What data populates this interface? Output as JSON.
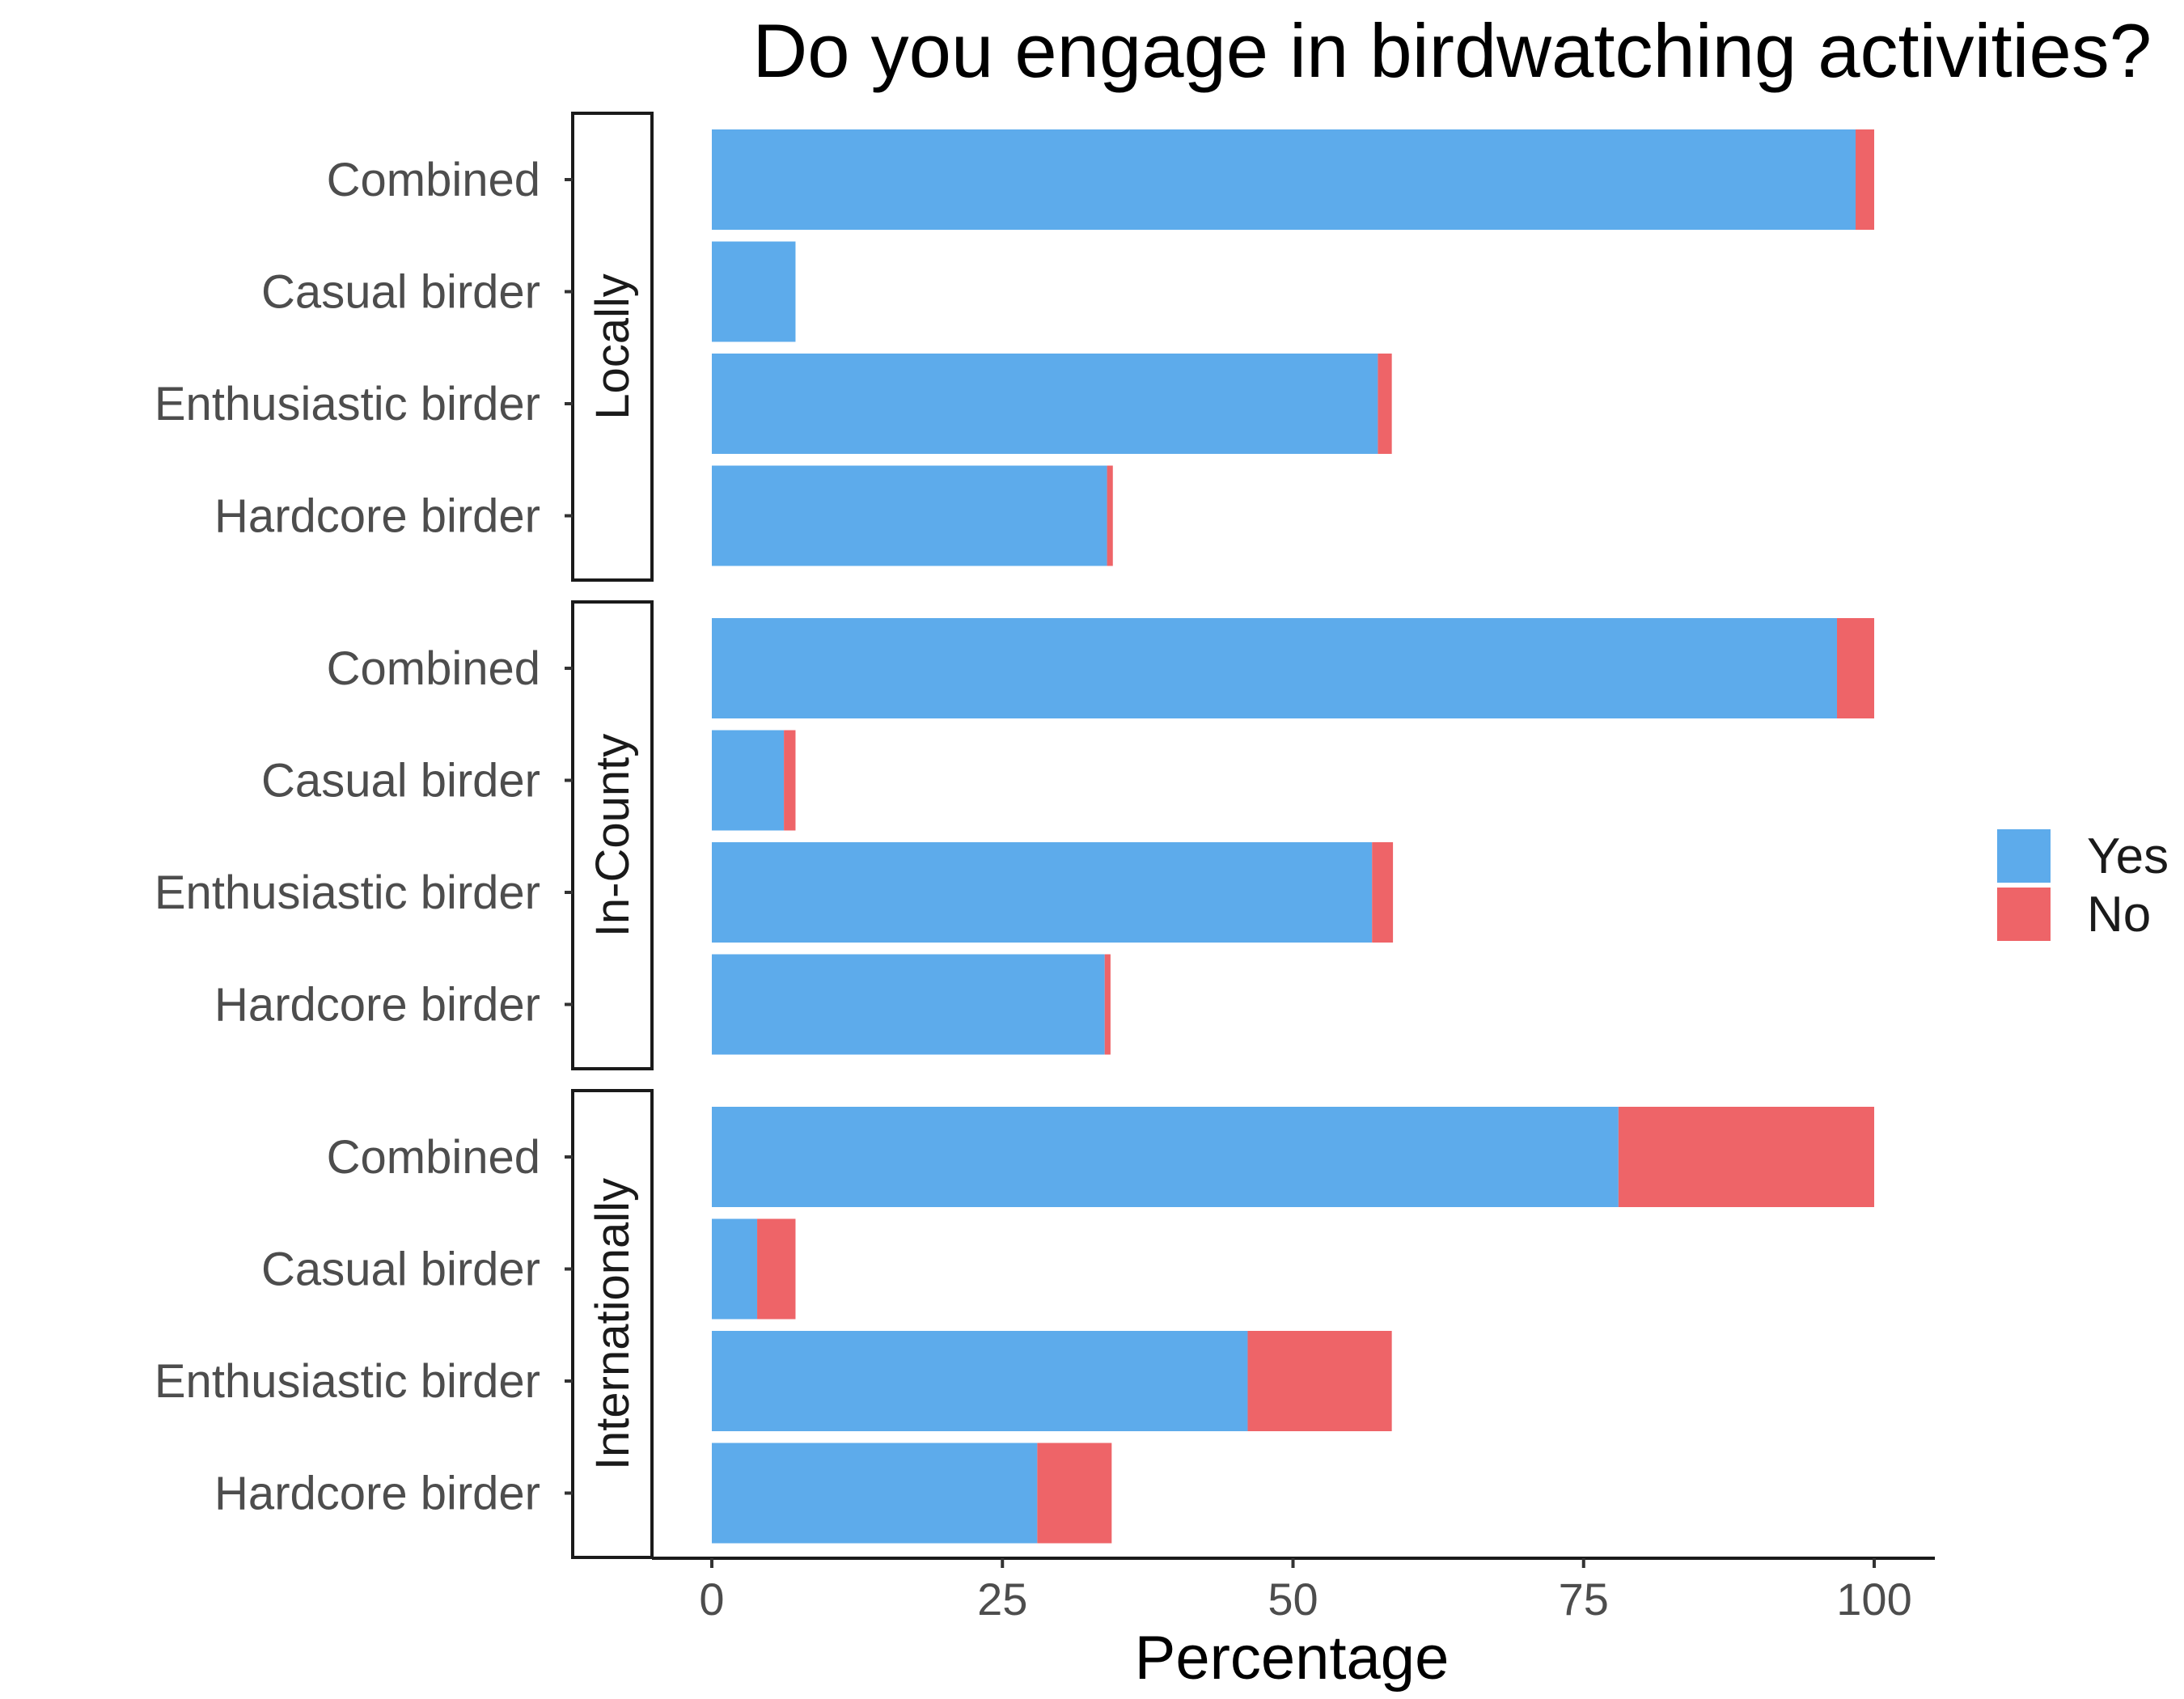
{
  "chart_data": {
    "type": "bar",
    "orientation": "horizontal",
    "stacked": true,
    "title": "Do you engage in birdwatching activities?",
    "xlabel": "Percentage",
    "ylabel": "",
    "xlim": [
      0,
      100
    ],
    "x_ticks": [
      0,
      25,
      50,
      75,
      100
    ],
    "grid": false,
    "legend_position": "right",
    "facets": [
      {
        "label": "Locally",
        "categories": [
          "Combined",
          "Casual birder",
          "Enthusiastic birder",
          "Hardcore birder"
        ],
        "series": [
          {
            "name": "Yes",
            "values": [
              98.4,
              7.2,
              57.3,
              34.0
            ]
          },
          {
            "name": "No",
            "values": [
              1.6,
              0.0,
              1.2,
              0.5
            ]
          }
        ]
      },
      {
        "label": "In-County",
        "categories": [
          "Combined",
          "Casual birder",
          "Enthusiastic birder",
          "Hardcore birder"
        ],
        "series": [
          {
            "name": "Yes",
            "values": [
              96.8,
              6.2,
              56.8,
              33.8
            ]
          },
          {
            "name": "No",
            "values": [
              3.2,
              1.0,
              1.8,
              0.5
            ]
          }
        ]
      },
      {
        "label": "Internationally",
        "categories": [
          "Combined",
          "Casual birder",
          "Enthusiastic birder",
          "Hardcore birder"
        ],
        "series": [
          {
            "name": "Yes",
            "values": [
              78.0,
              3.9,
              46.1,
              28.0
            ]
          },
          {
            "name": "No",
            "values": [
              22.0,
              3.3,
              12.4,
              6.4
            ]
          }
        ]
      }
    ],
    "legend": [
      "Yes",
      "No"
    ],
    "colors": {
      "Yes": "#5DABEB",
      "No": "#EE6468"
    }
  }
}
